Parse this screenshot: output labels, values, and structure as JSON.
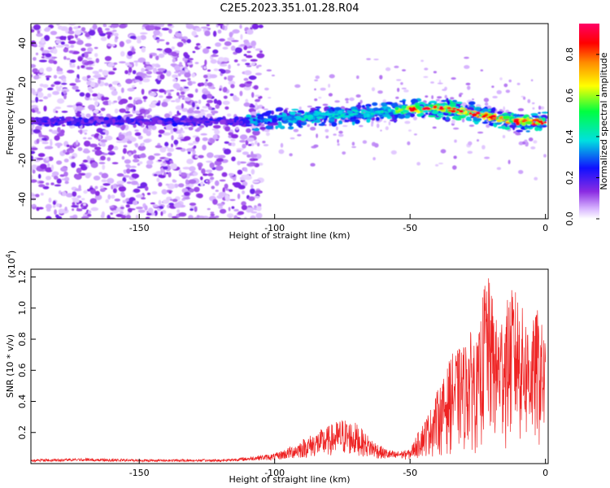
{
  "title": "C2E5.2023.351.01.28.R04",
  "chart_data": [
    {
      "type": "heatmap",
      "xlabel": "Height of straight line (km)",
      "ylabel": "Frequency (Hz)",
      "xlim": [
        -190,
        1
      ],
      "ylim": [
        -50,
        50
      ],
      "xticks": [
        -150,
        -100,
        -50,
        0
      ],
      "yticks": [
        -40,
        -20,
        0,
        20,
        40
      ],
      "colorbar": {
        "label": "Normalized spectral amplitude",
        "range": [
          0.0,
          0.95
        ],
        "ticks": [
          "0.0",
          "0.2",
          "0.4",
          "0.6",
          "0.8"
        ],
        "colors": [
          "#ffffff",
          "#d9b8ff",
          "#8a2be2",
          "#1010ff",
          "#00e0e0",
          "#00ff40",
          "#ffff00",
          "#ff8c00",
          "#ff0000",
          "#ff0066"
        ]
      },
      "ridge": {
        "description_points_x": [
          -190,
          -150,
          -110,
          -90,
          -70,
          -50,
          -40,
          -30,
          -20,
          -10,
          0
        ],
        "description_points_freq_hz": [
          0,
          0,
          0,
          2,
          4,
          6,
          7,
          5,
          2,
          0,
          0
        ]
      }
    },
    {
      "type": "line",
      "xlabel": "Height of straight line (km)",
      "ylabel": "SNR (10 * v/v)",
      "multiplier_label": "(x10",
      "multiplier_exp": "4",
      "multiplier_close": ")",
      "xlim": [
        -190,
        1
      ],
      "ylim": [
        0,
        12500
      ],
      "xticks": [
        -150,
        -100,
        -50,
        0
      ],
      "yticks": [
        "0.2",
        "0.4",
        "0.6",
        "0.8",
        "1.0",
        "1.2"
      ],
      "ytick_values": [
        2000,
        4000,
        6000,
        8000,
        10000,
        12000
      ],
      "color": "#ee2222",
      "envelope_x": [
        -190,
        -170,
        -150,
        -120,
        -110,
        -100,
        -95,
        -90,
        -85,
        -80,
        -75,
        -70,
        -65,
        -60,
        -55,
        -50,
        -48,
        -45,
        -42,
        -40,
        -37,
        -35,
        -30,
        -27,
        -25,
        -22,
        -20,
        -18,
        -15,
        -12,
        -10,
        -8,
        -5,
        -3,
        0
      ],
      "envelope_y": [
        200,
        250,
        200,
        200,
        300,
        500,
        900,
        1400,
        1900,
        2300,
        2800,
        2500,
        1600,
        900,
        600,
        700,
        1500,
        2500,
        3500,
        4500,
        5500,
        6800,
        7500,
        8500,
        7500,
        12500,
        11000,
        9000,
        10000,
        11200,
        10800,
        9500,
        8800,
        9800,
        8000
      ]
    }
  ]
}
